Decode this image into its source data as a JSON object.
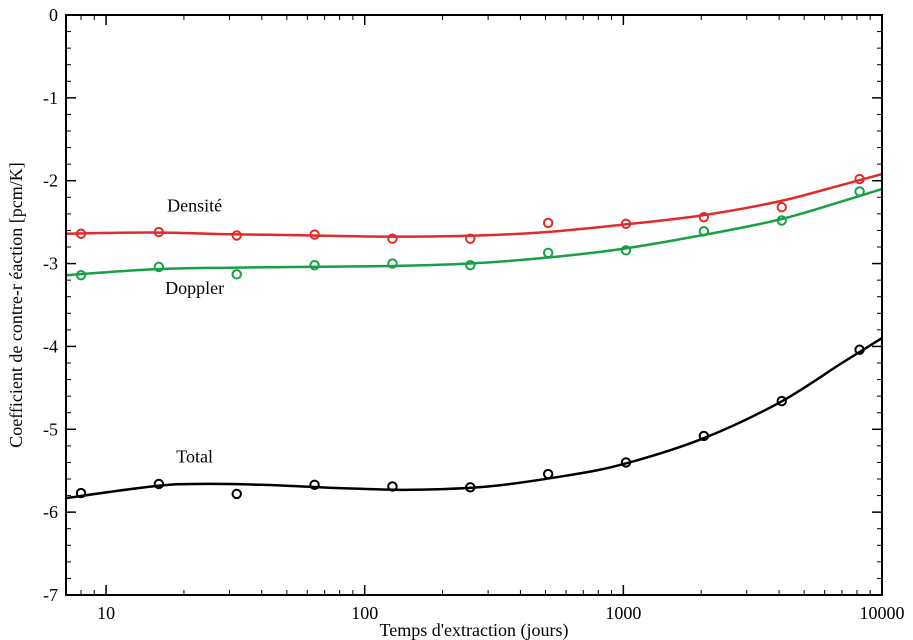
{
  "chart_data": {
    "type": "scatter",
    "xlabel": "Temps d'extraction (jours)",
    "ylabel": "Coefficient de contre-r éaction [pcm/K]",
    "x_scale": "log",
    "xlim": [
      7,
      10000
    ],
    "ylim": [
      -7,
      0
    ],
    "x_tick_values": [
      10,
      100,
      1000,
      10000
    ],
    "x_tick_labels": [
      "10",
      "100",
      "1000",
      "10000"
    ],
    "y_tick_values": [
      0,
      -1,
      -2,
      -3,
      -4,
      -5,
      -6,
      -7
    ],
    "y_tick_labels": [
      "0",
      "-1",
      "-2",
      "-3",
      "-4",
      "-5",
      "-6",
      "-7"
    ],
    "grid": false,
    "series": [
      {
        "name": "Densité",
        "color": "#e32a2a",
        "x": [
          8,
          16,
          32,
          64,
          128,
          256,
          512,
          1024,
          2048,
          4096,
          8192
        ],
        "y": [
          -2.64,
          -2.62,
          -2.66,
          -2.65,
          -2.7,
          -2.7,
          -2.51,
          -2.52,
          -2.44,
          -2.32,
          -1.98
        ],
        "fit": [
          [
            7,
            -2.64
          ],
          [
            15,
            -2.625
          ],
          [
            30,
            -2.645
          ],
          [
            60,
            -2.66
          ],
          [
            120,
            -2.675
          ],
          [
            250,
            -2.665
          ],
          [
            500,
            -2.62
          ],
          [
            1000,
            -2.53
          ],
          [
            2000,
            -2.42
          ],
          [
            4000,
            -2.25
          ],
          [
            7000,
            -2.05
          ],
          [
            10000,
            -1.92
          ]
        ]
      },
      {
        "name": "Doppler",
        "color": "#17a045",
        "x": [
          8,
          16,
          32,
          64,
          128,
          256,
          512,
          1024,
          2048,
          4096,
          8192
        ],
        "y": [
          -3.14,
          -3.04,
          -3.13,
          -3.02,
          -3.0,
          -3.02,
          -2.87,
          -2.84,
          -2.61,
          -2.48,
          -2.13
        ],
        "fit": [
          [
            7,
            -3.14
          ],
          [
            15,
            -3.07
          ],
          [
            30,
            -3.05
          ],
          [
            60,
            -3.04
          ],
          [
            120,
            -3.03
          ],
          [
            250,
            -3.0
          ],
          [
            500,
            -2.93
          ],
          [
            1000,
            -2.82
          ],
          [
            2000,
            -2.66
          ],
          [
            4000,
            -2.47
          ],
          [
            7000,
            -2.25
          ],
          [
            10000,
            -2.1
          ]
        ]
      },
      {
        "name": "Total",
        "color": "#000000",
        "x": [
          8,
          16,
          32,
          64,
          128,
          256,
          512,
          1024,
          2048,
          4096,
          8192
        ],
        "y": [
          -5.77,
          -5.66,
          -5.78,
          -5.67,
          -5.69,
          -5.7,
          -5.54,
          -5.4,
          -5.08,
          -4.66,
          -4.04
        ],
        "fit": [
          [
            7,
            -5.83
          ],
          [
            15,
            -5.69
          ],
          [
            22,
            -5.66
          ],
          [
            40,
            -5.67
          ],
          [
            80,
            -5.71
          ],
          [
            150,
            -5.73
          ],
          [
            300,
            -5.69
          ],
          [
            600,
            -5.56
          ],
          [
            1000,
            -5.42
          ],
          [
            2000,
            -5.12
          ],
          [
            4000,
            -4.68
          ],
          [
            7000,
            -4.2
          ],
          [
            10000,
            -3.9
          ]
        ]
      }
    ],
    "annotations": [
      {
        "text": "Densité",
        "x": 22,
        "y": -2.37
      },
      {
        "text": "Doppler",
        "x": 22,
        "y": -3.37
      },
      {
        "text": "Total",
        "x": 22,
        "y": -5.4
      }
    ]
  }
}
